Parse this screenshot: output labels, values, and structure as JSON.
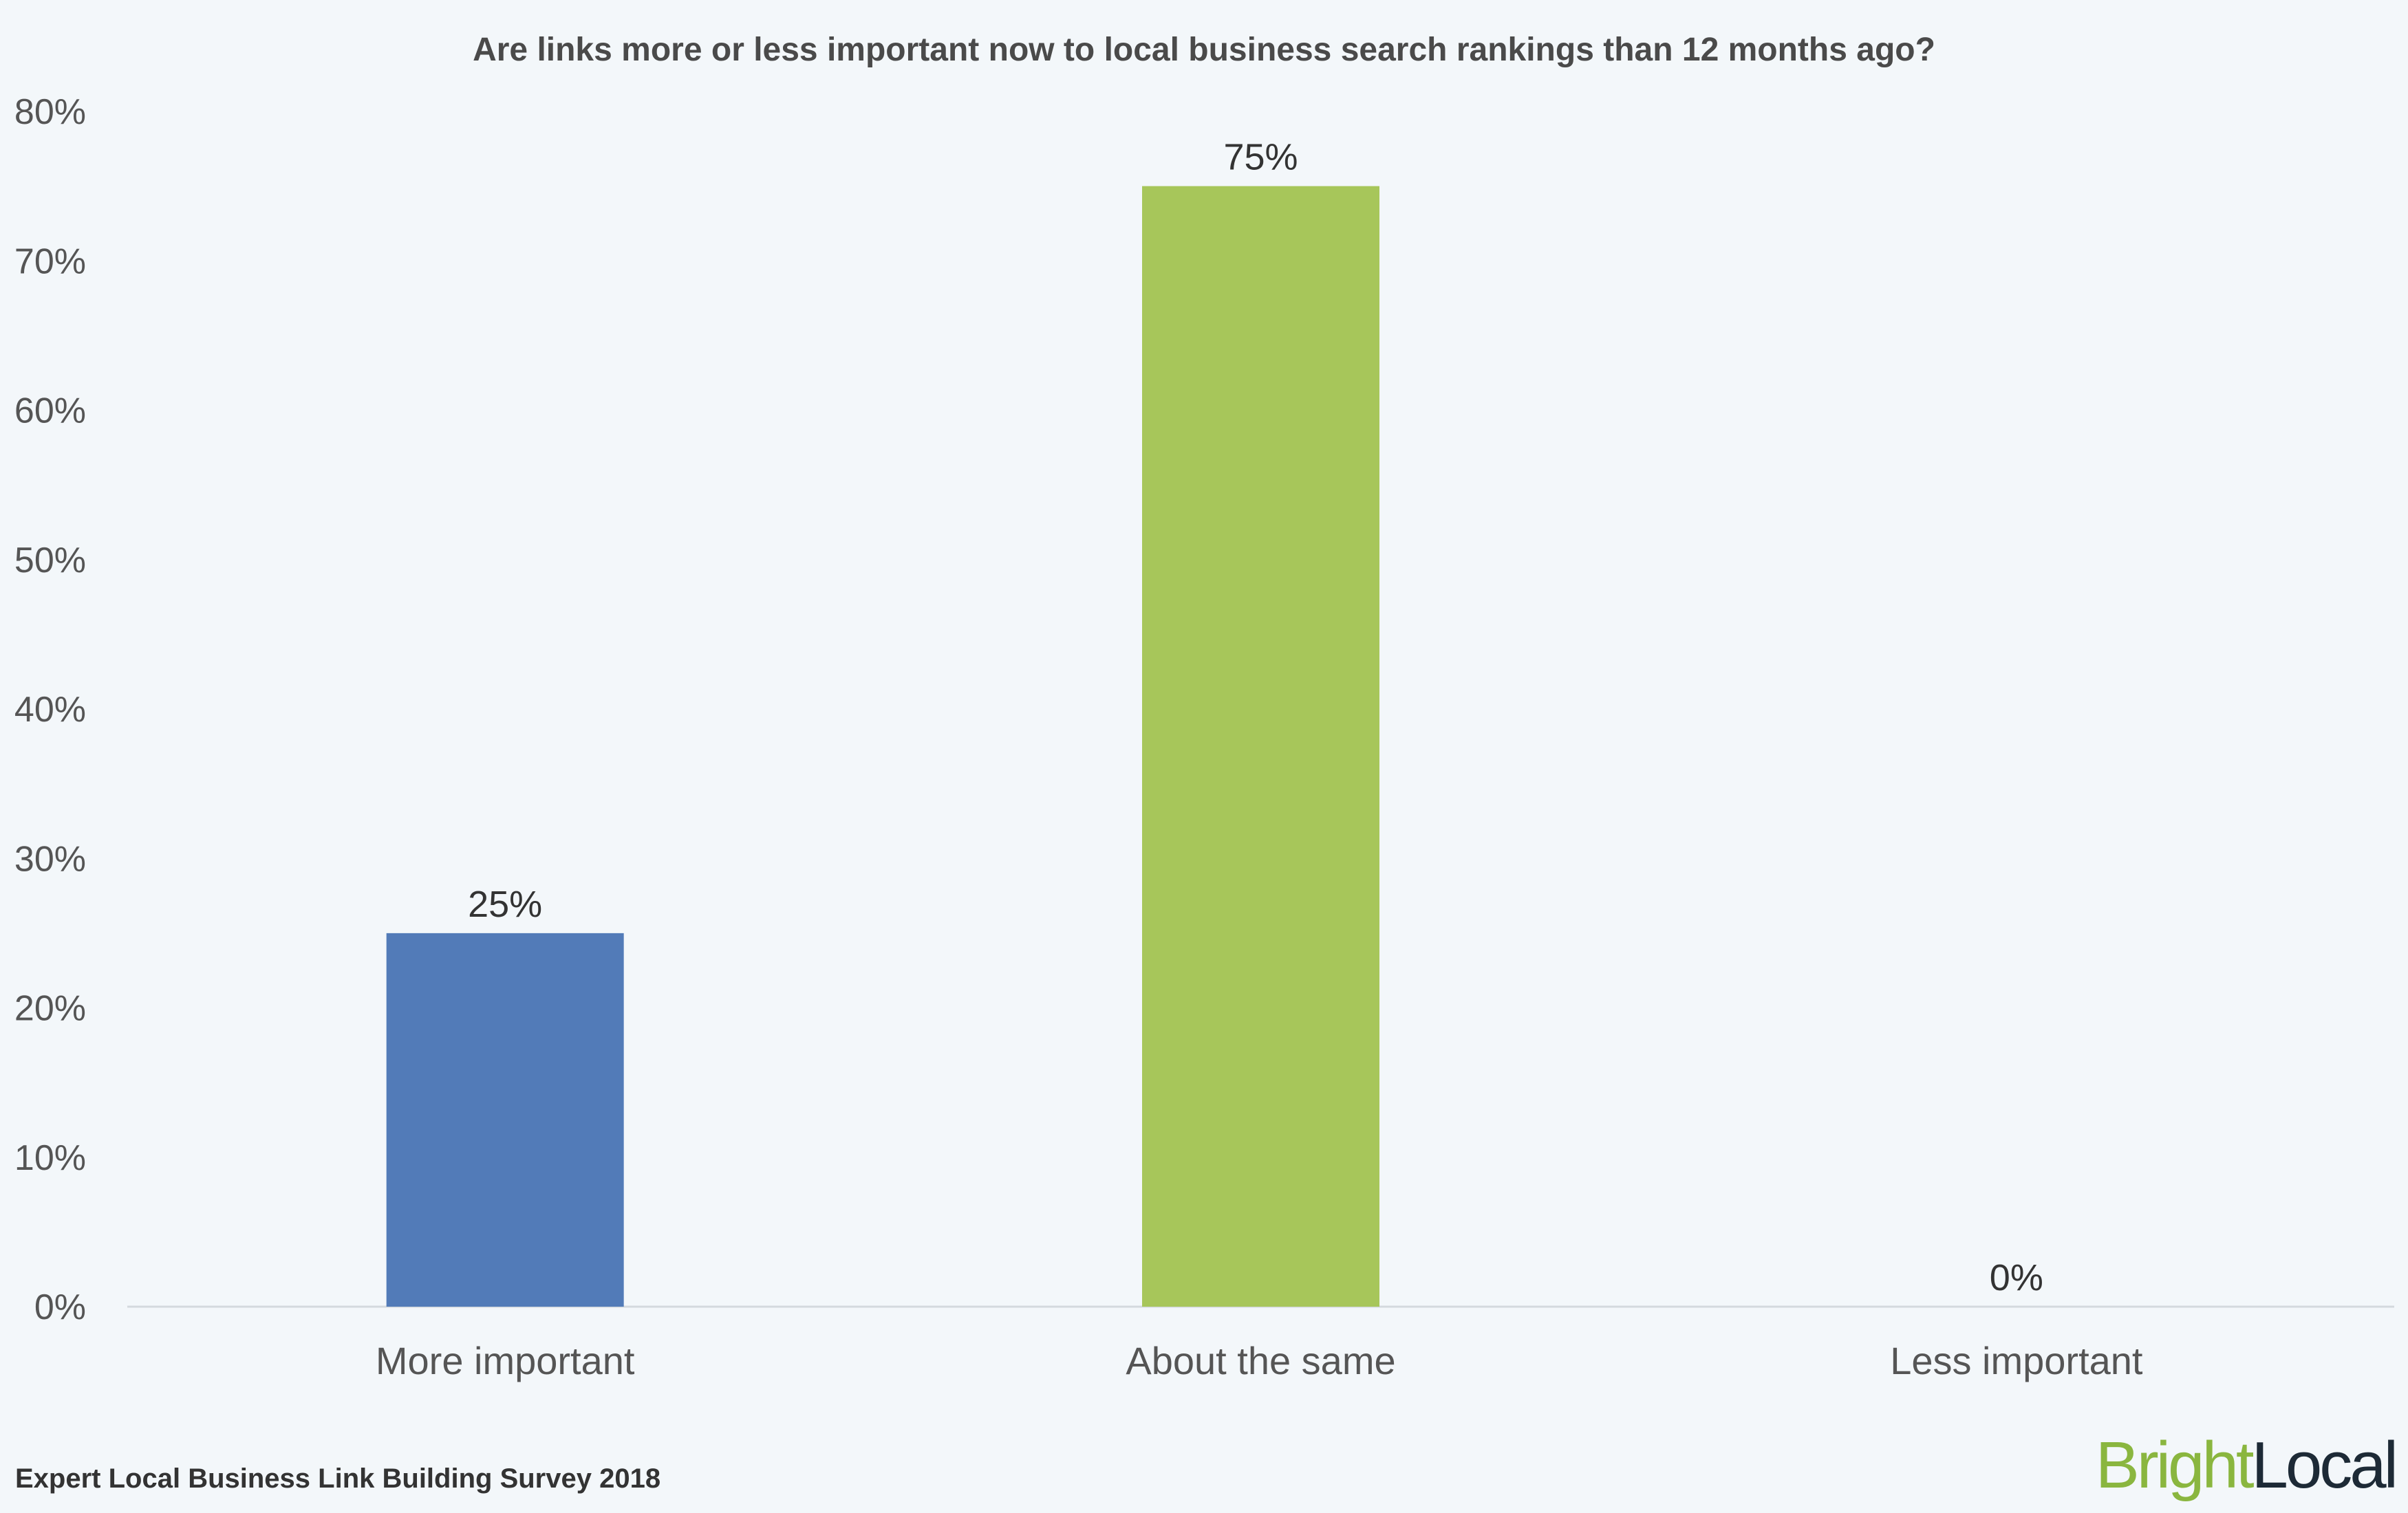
{
  "chart_data": {
    "type": "bar",
    "title": "Are links more or less important now to local business search rankings than 12 months ago?",
    "categories": [
      "More important",
      "About the same",
      "Less important"
    ],
    "values": [
      25,
      75,
      0
    ],
    "value_labels": [
      "25%",
      "75%",
      "0%"
    ],
    "colors": [
      "#527bb8",
      "#a7c65a",
      "#e08a3c"
    ],
    "ylim": [
      0,
      80
    ],
    "yticks": [
      "0%",
      "10%",
      "20%",
      "30%",
      "40%",
      "50%",
      "60%",
      "70%",
      "80%"
    ],
    "grid": false,
    "legend": "none"
  },
  "footer": {
    "source": "Expert Local Business Link Building Survey 2018",
    "logo_part1": "Bright",
    "logo_part2": "Local",
    "logo_color1": "#8ab63f",
    "logo_color2": "#1d2a36"
  }
}
